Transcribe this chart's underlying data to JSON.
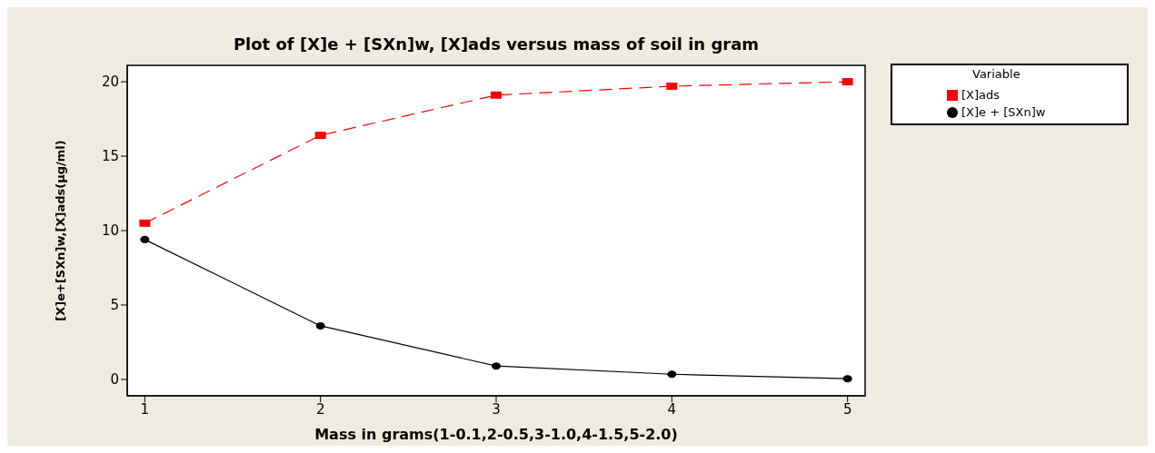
{
  "chart_data": {
    "type": "line",
    "title": "Plot of [X]e + [SXn]w, [X]ads versus mass of soil in gram",
    "xlabel": "Mass in grams(1-0.1,2-0.5,3-1.0,4-1.5,5-2.0)",
    "ylabel": "[X]e+[SXn]w,[X]ads(µg/ml)",
    "legend_title": "Variable",
    "legend": "top right",
    "x": [
      1,
      2,
      3,
      4,
      5
    ],
    "series": [
      {
        "name": "[X]e + [SXn]w",
        "color": "#000000",
        "marker": "circle",
        "line_style": "solid",
        "values": [
          9.4,
          3.6,
          0.9,
          0.35,
          0.05
        ]
      },
      {
        "name": "[X]ads",
        "color": "#ff0000",
        "marker": "square",
        "line_style": "dashed",
        "values": [
          10.5,
          16.4,
          19.1,
          19.7,
          20.0
        ]
      }
    ],
    "xlim": [
      0.9,
      5.1
    ],
    "xticks": [
      1,
      2,
      3,
      4,
      5
    ],
    "ylim": [
      -1.1,
      21.1
    ],
    "yticks": [
      0,
      5,
      10,
      15,
      20
    ]
  }
}
